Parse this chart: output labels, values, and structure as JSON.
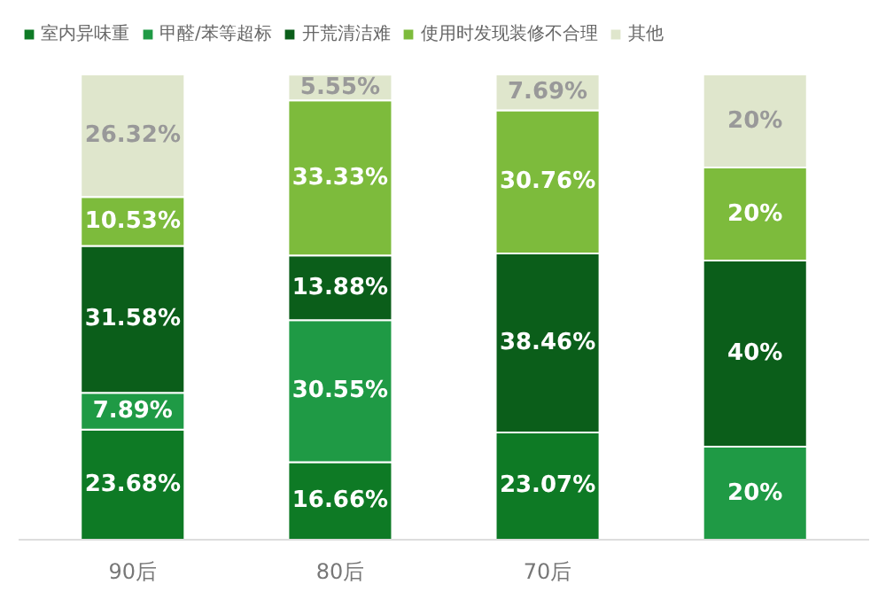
{
  "chart_data": {
    "type": "bar",
    "stacked": true,
    "categories": [
      "90后",
      "80后",
      "70后",
      null
    ],
    "series": [
      {
        "name": "室内异味重",
        "color": "#0e7a25",
        "values": [
          23.68,
          16.66,
          23.07,
          null
        ],
        "value_labels": [
          "23.68%",
          "16.66%",
          "23.07%",
          null
        ]
      },
      {
        "name": "甲醛/苯等超标",
        "color": "#1f9a45",
        "values": [
          7.89,
          30.55,
          null,
          20
        ],
        "value_labels": [
          "7.89%",
          "30.55%",
          null,
          "20%"
        ]
      },
      {
        "name": "开荒清洁难",
        "color": "#0b5e1a",
        "values": [
          31.58,
          13.88,
          38.46,
          40
        ],
        "value_labels": [
          "31.58%",
          "13.88%",
          "38.46%",
          "40%"
        ]
      },
      {
        "name": "使用时发现装修不合理",
        "color": "#7dbb3c",
        "values": [
          10.53,
          33.33,
          30.76,
          20
        ],
        "value_labels": [
          "10.53%",
          "33.33%",
          "30.76%",
          "20%"
        ]
      },
      {
        "name": "其他",
        "color": "#dfe6cc",
        "values": [
          26.32,
          5.55,
          7.69,
          20
        ],
        "value_labels": [
          "26.32%",
          "5.55%",
          "7.69%",
          "20%"
        ]
      }
    ],
    "legend": "top",
    "grid": false
  }
}
